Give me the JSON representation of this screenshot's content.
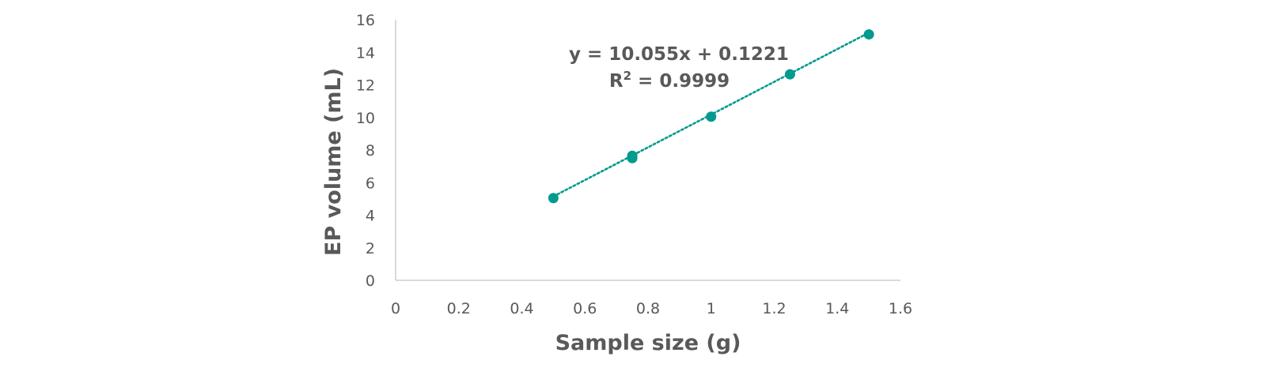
{
  "chart_data": {
    "type": "scatter",
    "xlabel": "Sample size (g)",
    "ylabel": "EP volume (mL)",
    "xlim": [
      0,
      1.6
    ],
    "ylim": [
      0,
      16
    ],
    "x_ticks": [
      "0",
      "0.2",
      "0.4",
      "0.6",
      "0.8",
      "1",
      "1.2",
      "1.4",
      "1.6"
    ],
    "y_ticks": [
      "0",
      "2",
      "4",
      "6",
      "8",
      "10",
      "12",
      "14",
      "16"
    ],
    "grid": false,
    "marker_color": "#009a8e",
    "trendline_color": "#009a8e",
    "points": [
      {
        "x": 0.5,
        "y": 5.05
      },
      {
        "x": 0.75,
        "y": 7.5
      },
      {
        "x": 0.75,
        "y": 7.65
      },
      {
        "x": 1.0,
        "y": 10.05
      },
      {
        "x": 1.25,
        "y": 12.65
      },
      {
        "x": 1.5,
        "y": 15.1
      }
    ],
    "trendline": {
      "type": "linear",
      "slope": 10.055,
      "intercept": 0.1221,
      "x_range": [
        0.5,
        1.5
      ],
      "equation_label": "y = 10.055x + 0.1221",
      "r_squared_label": "R",
      "r_squared_superscript": "2",
      "r_squared_value": " = 0.9999"
    }
  }
}
